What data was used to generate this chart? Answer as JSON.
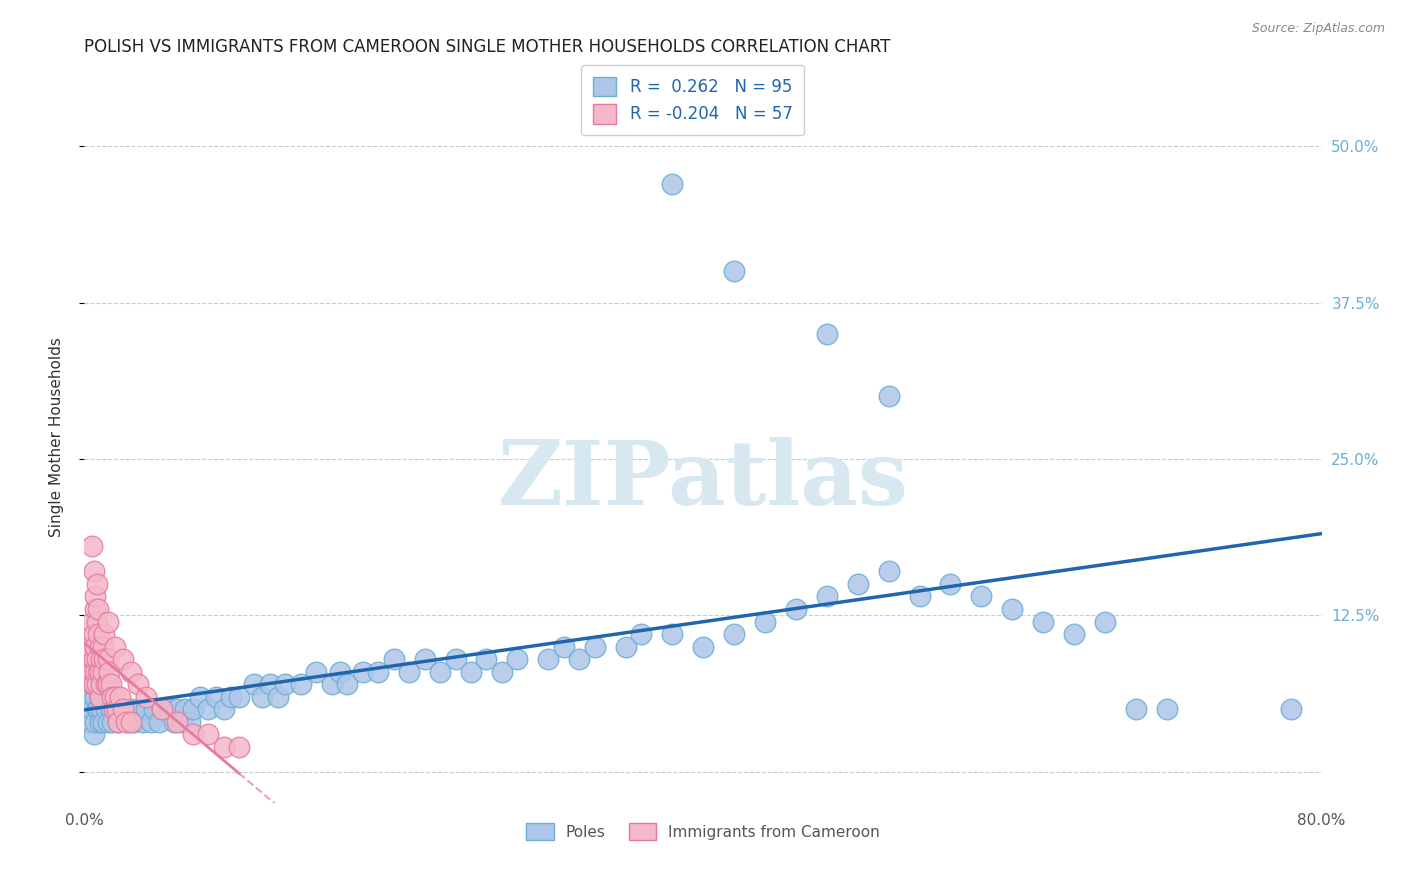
{
  "title": "POLISH VS IMMIGRANTS FROM CAMEROON SINGLE MOTHER HOUSEHOLDS CORRELATION CHART",
  "source": "Source: ZipAtlas.com",
  "ylabel": "Single Mother Households",
  "xlim": [
    0.0,
    0.8
  ],
  "ylim": [
    -0.025,
    0.56
  ],
  "yticks": [
    0.0,
    0.125,
    0.25,
    0.375,
    0.5
  ],
  "xticks": [
    0.0,
    0.8
  ],
  "xtick_labels": [
    "0.0%",
    "80.0%"
  ],
  "ytick_labels_right": [
    "",
    "12.5%",
    "25.0%",
    "37.5%",
    "50.0%"
  ],
  "poles_color_face": "#aec6e8",
  "poles_color_edge": "#6baed6",
  "cameroon_color_face": "#f4b8c8",
  "cameroon_color_edge": "#e87aa0",
  "line_poles_color": "#2166ac",
  "line_cameroon_color": "#e87aa0",
  "background_color": "#ffffff",
  "grid_color": "#cccccc",
  "title_fontsize": 12,
  "watermark_text": "ZIPatlas",
  "watermark_color": "#d8e8f0",
  "legend_R1": "0.262",
  "legend_N1": "95",
  "legend_R2": "-0.204",
  "legend_N2": "57",
  "poles_x": [
    0.003,
    0.004,
    0.005,
    0.006,
    0.006,
    0.007,
    0.007,
    0.008,
    0.008,
    0.009,
    0.01,
    0.01,
    0.011,
    0.012,
    0.013,
    0.014,
    0.015,
    0.016,
    0.017,
    0.018,
    0.02,
    0.022,
    0.025,
    0.028,
    0.03,
    0.032,
    0.035,
    0.038,
    0.04,
    0.043,
    0.045,
    0.048,
    0.05,
    0.055,
    0.058,
    0.06,
    0.063,
    0.065,
    0.068,
    0.07,
    0.075,
    0.08,
    0.085,
    0.09,
    0.095,
    0.1,
    0.11,
    0.115,
    0.12,
    0.125,
    0.13,
    0.14,
    0.15,
    0.16,
    0.165,
    0.17,
    0.18,
    0.19,
    0.2,
    0.21,
    0.22,
    0.23,
    0.24,
    0.25,
    0.26,
    0.27,
    0.28,
    0.3,
    0.31,
    0.32,
    0.33,
    0.35,
    0.36,
    0.38,
    0.4,
    0.42,
    0.44,
    0.46,
    0.48,
    0.5,
    0.52,
    0.54,
    0.56,
    0.58,
    0.6,
    0.62,
    0.64,
    0.66,
    0.68,
    0.7,
    0.38,
    0.42,
    0.48,
    0.52,
    0.78
  ],
  "poles_y": [
    0.04,
    0.06,
    0.05,
    0.07,
    0.03,
    0.06,
    0.04,
    0.05,
    0.07,
    0.05,
    0.04,
    0.06,
    0.05,
    0.04,
    0.06,
    0.05,
    0.04,
    0.06,
    0.05,
    0.04,
    0.05,
    0.04,
    0.05,
    0.04,
    0.05,
    0.04,
    0.05,
    0.04,
    0.05,
    0.04,
    0.05,
    0.04,
    0.05,
    0.05,
    0.04,
    0.05,
    0.04,
    0.05,
    0.04,
    0.05,
    0.06,
    0.05,
    0.06,
    0.05,
    0.06,
    0.06,
    0.07,
    0.06,
    0.07,
    0.06,
    0.07,
    0.07,
    0.08,
    0.07,
    0.08,
    0.07,
    0.08,
    0.08,
    0.09,
    0.08,
    0.09,
    0.08,
    0.09,
    0.08,
    0.09,
    0.08,
    0.09,
    0.09,
    0.1,
    0.09,
    0.1,
    0.1,
    0.11,
    0.11,
    0.1,
    0.11,
    0.12,
    0.13,
    0.14,
    0.15,
    0.16,
    0.14,
    0.15,
    0.14,
    0.13,
    0.12,
    0.11,
    0.12,
    0.05,
    0.05,
    0.47,
    0.4,
    0.35,
    0.3,
    0.05
  ],
  "cameroon_x": [
    0.003,
    0.004,
    0.004,
    0.005,
    0.005,
    0.005,
    0.006,
    0.006,
    0.006,
    0.007,
    0.007,
    0.007,
    0.008,
    0.008,
    0.008,
    0.009,
    0.009,
    0.01,
    0.01,
    0.01,
    0.011,
    0.011,
    0.012,
    0.012,
    0.013,
    0.013,
    0.014,
    0.015,
    0.015,
    0.016,
    0.017,
    0.018,
    0.019,
    0.02,
    0.021,
    0.022,
    0.023,
    0.025,
    0.027,
    0.03,
    0.005,
    0.006,
    0.007,
    0.008,
    0.009,
    0.015,
    0.02,
    0.025,
    0.03,
    0.035,
    0.04,
    0.05,
    0.06,
    0.07,
    0.08,
    0.09,
    0.1
  ],
  "cameroon_y": [
    0.09,
    0.1,
    0.08,
    0.12,
    0.08,
    0.07,
    0.11,
    0.09,
    0.07,
    0.13,
    0.1,
    0.08,
    0.12,
    0.09,
    0.07,
    0.11,
    0.08,
    0.1,
    0.08,
    0.06,
    0.09,
    0.07,
    0.1,
    0.08,
    0.11,
    0.09,
    0.07,
    0.09,
    0.07,
    0.08,
    0.07,
    0.06,
    0.05,
    0.06,
    0.05,
    0.04,
    0.06,
    0.05,
    0.04,
    0.04,
    0.18,
    0.16,
    0.14,
    0.15,
    0.13,
    0.12,
    0.1,
    0.09,
    0.08,
    0.07,
    0.06,
    0.05,
    0.04,
    0.03,
    0.03,
    0.02,
    0.02
  ]
}
